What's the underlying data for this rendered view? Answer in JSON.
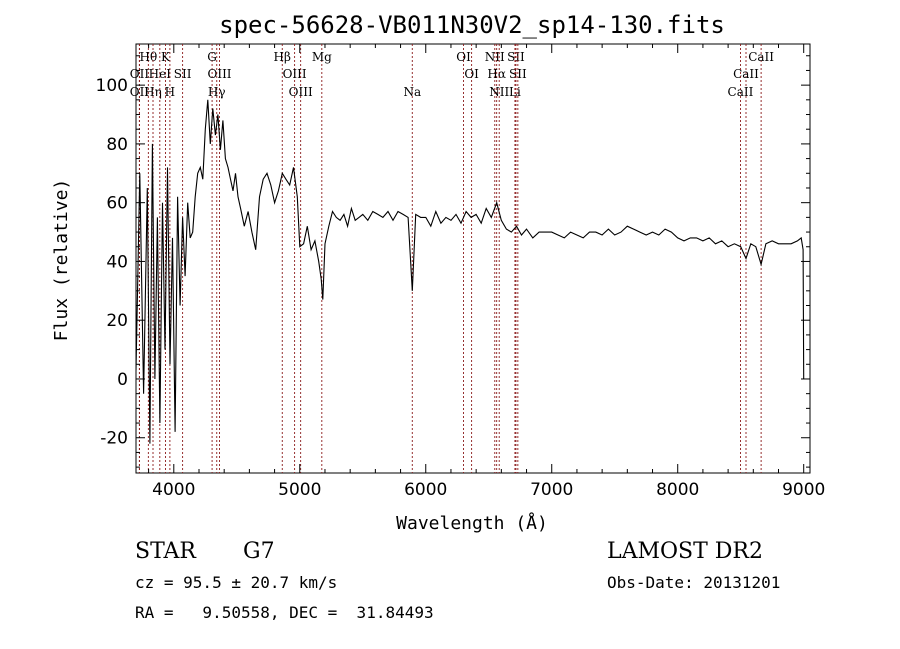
{
  "chart_data": {
    "type": "line",
    "title": "spec-56628-VB011N30V2_sp14-130.fits",
    "xlabel": "Wavelength (Å)",
    "ylabel": "Flux (relative)",
    "xlim": [
      3700,
      9050
    ],
    "ylim": [
      -32,
      114
    ],
    "xticks": [
      4000,
      5000,
      6000,
      7000,
      8000,
      9000
    ],
    "yticks": [
      -20,
      0,
      20,
      40,
      60,
      80,
      100
    ],
    "grid": false,
    "legend": "none",
    "colors": {
      "spectrum": "#000000",
      "lines": "#8b1a1a"
    },
    "series": [
      {
        "x": [
          3700,
          3730,
          3760,
          3790,
          3810,
          3830,
          3850,
          3870,
          3890,
          3910,
          3930,
          3950,
          3970,
          3990,
          4010,
          4030,
          4050,
          4070,
          4090,
          4110,
          4130,
          4150,
          4170,
          4190,
          4210,
          4230,
          4250,
          4270,
          4290,
          4310,
          4330,
          4350,
          4370,
          4390,
          4410,
          4430,
          4450,
          4470,
          4490,
          4510,
          4530,
          4560,
          4590,
          4620,
          4650,
          4680,
          4710,
          4740,
          4770,
          4800,
          4830,
          4861,
          4890,
          4920,
          4950,
          4980,
          5000,
          5030,
          5060,
          5090,
          5120,
          5150,
          5170,
          5183,
          5200,
          5230,
          5260,
          5290,
          5320,
          5350,
          5380,
          5410,
          5440,
          5470,
          5500,
          5540,
          5580,
          5620,
          5660,
          5700,
          5740,
          5780,
          5820,
          5860,
          5893,
          5920,
          5960,
          6000,
          6040,
          6080,
          6120,
          6160,
          6200,
          6240,
          6280,
          6320,
          6360,
          6400,
          6440,
          6480,
          6520,
          6563,
          6600,
          6640,
          6680,
          6720,
          6760,
          6800,
          6850,
          6900,
          6950,
          7000,
          7050,
          7100,
          7150,
          7200,
          7250,
          7300,
          7350,
          7400,
          7450,
          7500,
          7550,
          7600,
          7650,
          7700,
          7750,
          7800,
          7850,
          7900,
          7950,
          8000,
          8050,
          8100,
          8150,
          8200,
          8250,
          8300,
          8350,
          8400,
          8450,
          8500,
          8542,
          8580,
          8620,
          8662,
          8700,
          8750,
          8800,
          8850,
          8900,
          8950,
          8980,
          8995,
          9000
        ],
        "y": [
          3,
          70,
          -5,
          65,
          -22,
          80,
          0,
          55,
          -15,
          60,
          10,
          72,
          5,
          48,
          -18,
          62,
          25,
          55,
          35,
          60,
          48,
          50,
          62,
          70,
          72,
          68,
          85,
          95,
          80,
          92,
          83,
          90,
          78,
          88,
          75,
          72,
          68,
          64,
          70,
          62,
          58,
          52,
          57,
          50,
          44,
          62,
          68,
          70,
          66,
          60,
          64,
          70,
          68,
          66,
          72,
          62,
          45,
          46,
          52,
          44,
          47,
          40,
          34,
          27,
          46,
          52,
          57,
          55,
          54,
          56,
          52,
          58,
          54,
          55,
          56,
          54,
          57,
          56,
          55,
          57,
          54,
          57,
          56,
          55,
          30,
          56,
          55,
          55,
          52,
          57,
          53,
          55,
          54,
          56,
          53,
          57,
          55,
          56,
          53,
          58,
          55,
          60,
          54,
          51,
          50,
          52,
          49,
          51,
          48,
          50,
          50,
          50,
          49,
          48,
          50,
          49,
          48,
          50,
          50,
          49,
          51,
          49,
          50,
          52,
          51,
          50,
          49,
          50,
          49,
          51,
          50,
          48,
          47,
          48,
          48,
          47,
          48,
          46,
          47,
          45,
          46,
          45,
          41,
          46,
          45,
          39,
          46,
          47,
          46,
          46,
          46,
          47,
          48,
          44,
          0
        ]
      }
    ],
    "lines": [
      {
        "label": "Hθ",
        "x": 3798,
        "row": 1
      },
      {
        "label": "OII",
        "x": 3727,
        "row": 2
      },
      {
        "label": "OII",
        "x": 3727,
        "row": 3
      },
      {
        "label": "Hη",
        "x": 3835,
        "row": 3
      },
      {
        "label": "K",
        "x": 3934,
        "row": 1
      },
      {
        "label": "HeI",
        "x": 3889,
        "row": 2
      },
      {
        "label": "SII",
        "x": 4070,
        "row": 2
      },
      {
        "label": "H",
        "x": 3969,
        "row": 3
      },
      {
        "label": "G",
        "x": 4304,
        "row": 1
      },
      {
        "label": "OIII",
        "x": 4363,
        "row": 2
      },
      {
        "label": "Hγ",
        "x": 4341,
        "row": 3
      },
      {
        "label": "Hβ",
        "x": 4861,
        "row": 1
      },
      {
        "label": "OIII",
        "x": 4959,
        "row": 2
      },
      {
        "label": "OIII",
        "x": 5007,
        "row": 3
      },
      {
        "label": "Mg",
        "x": 5175,
        "row": 1
      },
      {
        "label": "Na",
        "x": 5893,
        "row": 3
      },
      {
        "label": "OI",
        "x": 6300,
        "row": 1
      },
      {
        "label": "OI",
        "x": 6364,
        "row": 2
      },
      {
        "label": "NII",
        "x": 6548,
        "row": 1
      },
      {
        "label": "Hα",
        "x": 6563,
        "row": 2
      },
      {
        "label": "NII",
        "x": 6583,
        "row": 3
      },
      {
        "label": "SII",
        "x": 6716,
        "row": 1
      },
      {
        "label": "SII",
        "x": 6731,
        "row": 2
      },
      {
        "label": "Li",
        "x": 6708,
        "row": 3
      },
      {
        "label": "CaII",
        "x": 8662,
        "row": 1
      },
      {
        "label": "CaII",
        "x": 8542,
        "row": 2
      },
      {
        "label": "CaII",
        "x": 8498,
        "row": 3
      }
    ]
  },
  "info": {
    "object_class": "STAR",
    "subclass": "G7",
    "survey": "LAMOST DR2",
    "velocity": "cz = 95.5 ± 20.7 km/s",
    "obs_date": "Obs-Date: 20131201",
    "coords": "RA =   9.50558, DEC =  31.84493"
  }
}
